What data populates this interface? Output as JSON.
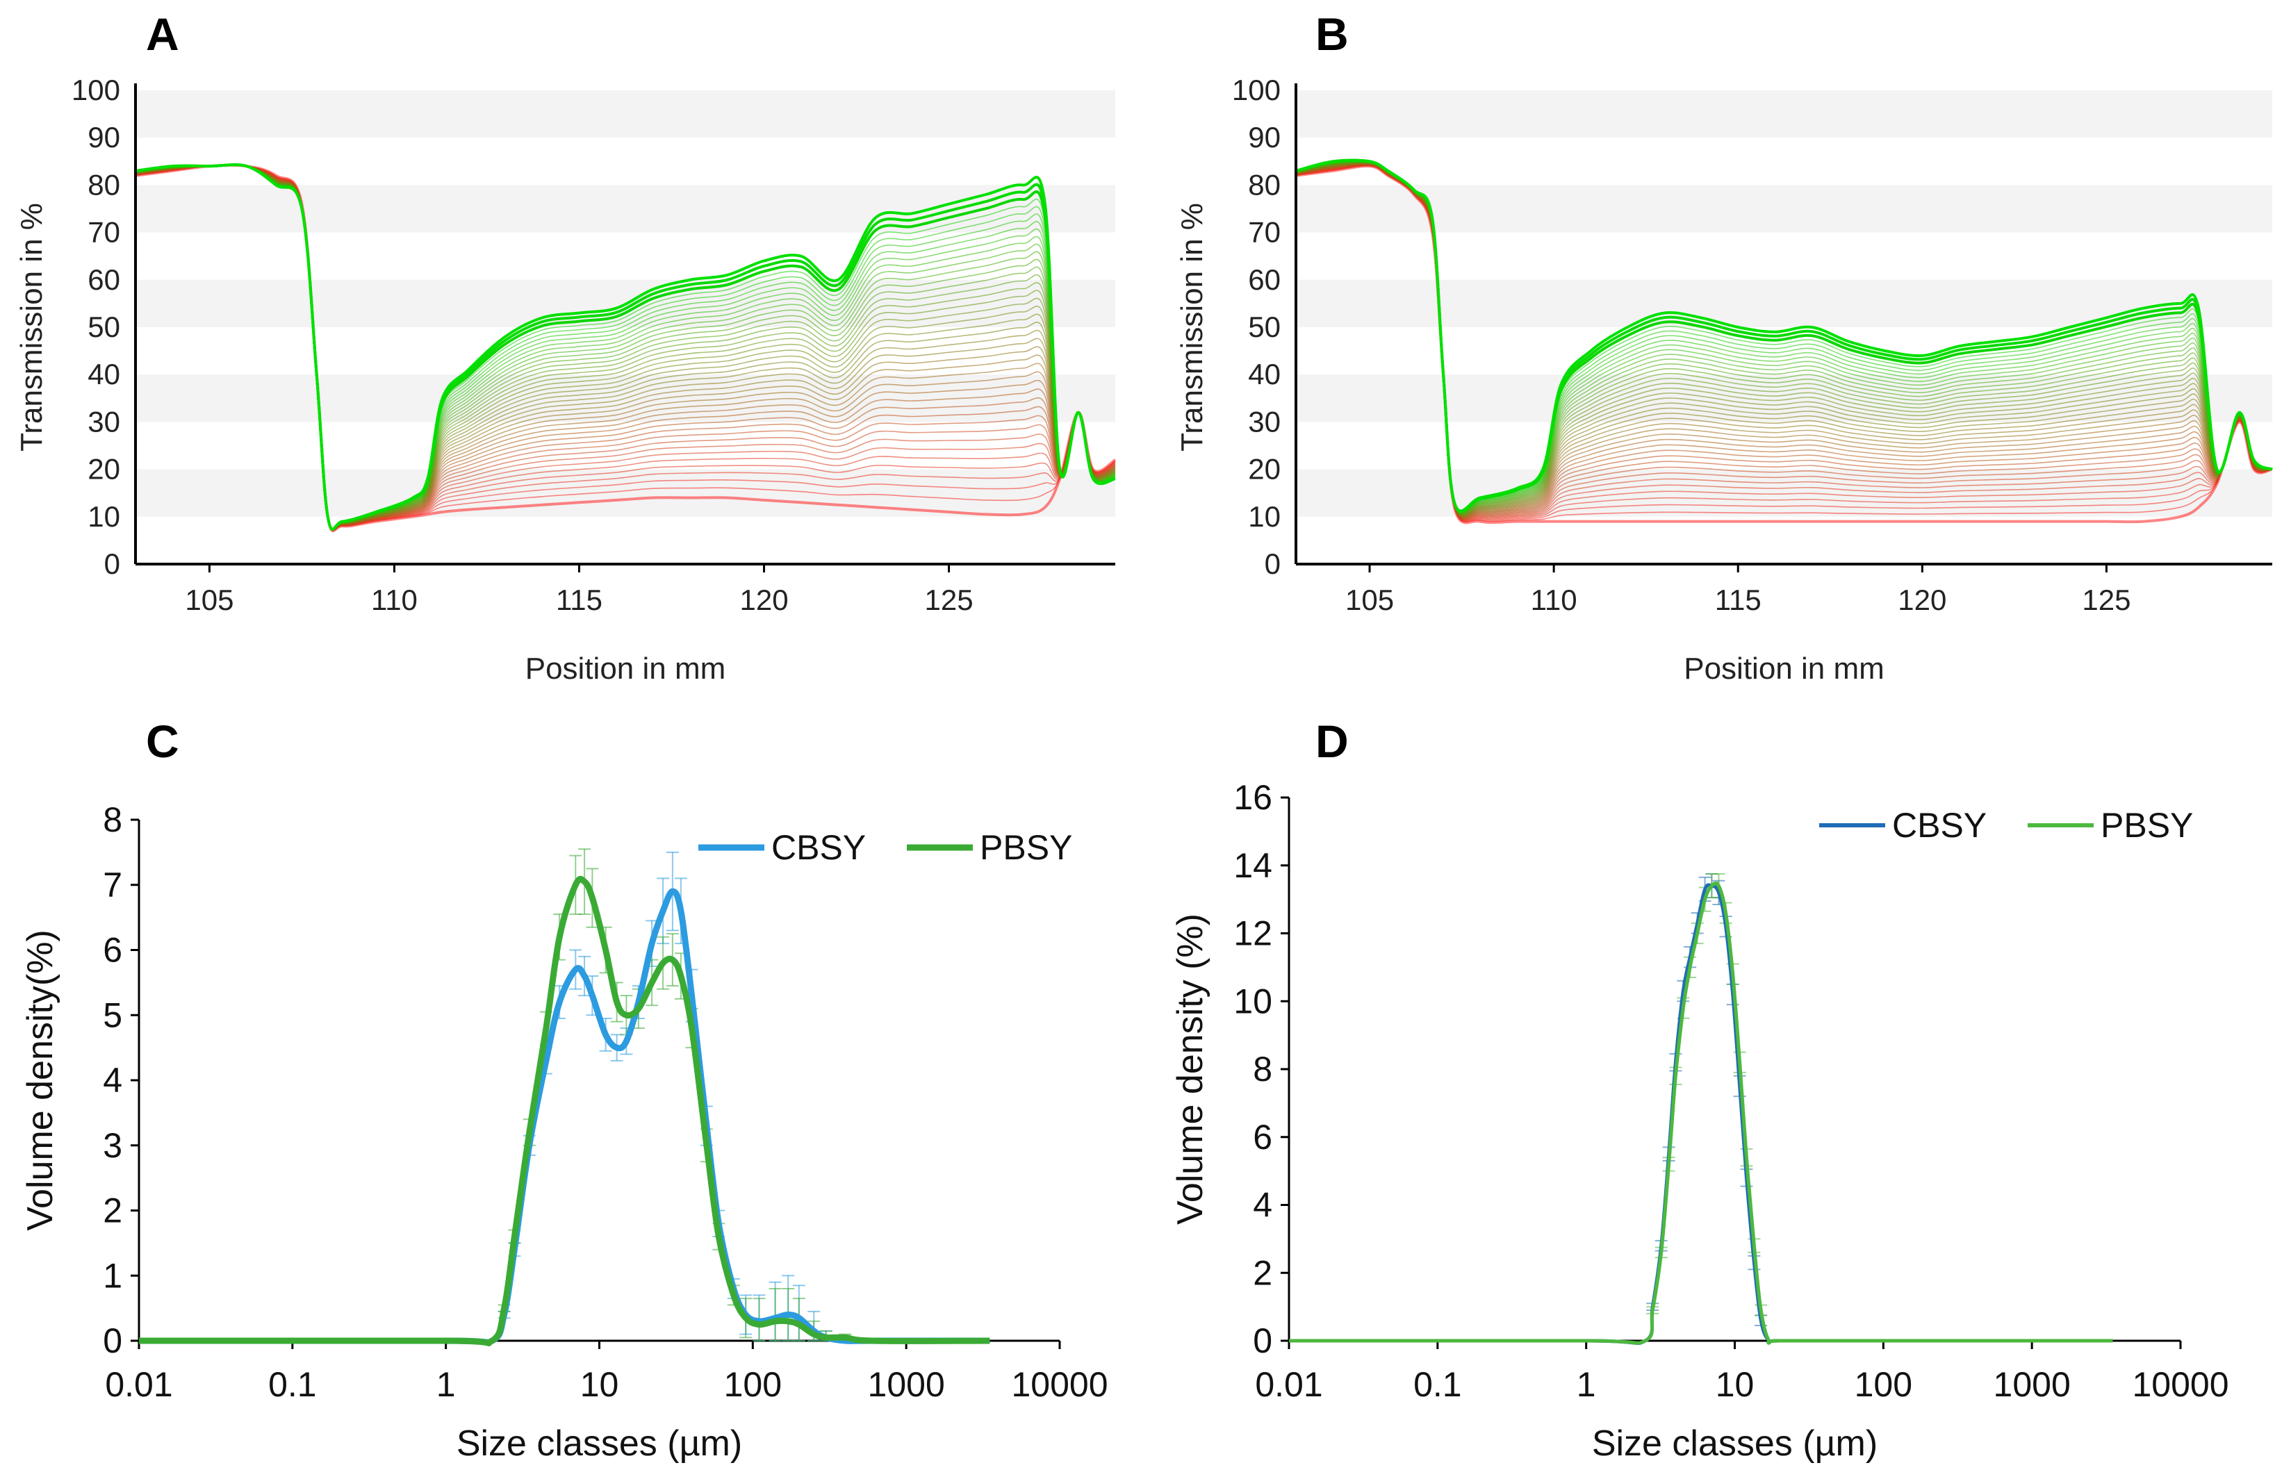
{
  "figure": {
    "panel_labels": [
      "A",
      "B",
      "C",
      "D"
    ]
  },
  "chart_data": [
    {
      "panel": "A",
      "type": "line",
      "title": "",
      "xlabel": "Position in mm",
      "ylabel": "Transmission in %",
      "xlim": [
        103,
        129.5
      ],
      "ylim": [
        0,
        100
      ],
      "xticks": [
        105,
        110,
        115,
        120,
        125
      ],
      "yticks": [
        0,
        10,
        20,
        30,
        40,
        50,
        60,
        70,
        80,
        90,
        100
      ],
      "profile_count": 40,
      "color_start": "#ff2020",
      "color_end": "#00e000",
      "x": [
        103,
        104,
        105,
        106,
        106.8,
        107.5,
        107.9,
        108.2,
        108.6,
        109.5,
        110.5,
        110.9,
        111.3,
        112,
        113,
        114,
        115,
        116,
        117,
        118,
        119,
        120,
        121,
        122,
        123,
        124,
        125,
        126,
        127,
        127.6,
        128,
        128.5,
        128.9,
        129.5
      ],
      "first_profile": [
        82,
        83,
        84,
        84,
        82,
        76,
        40,
        10,
        8,
        9,
        10,
        10.5,
        11,
        11.5,
        12,
        12.5,
        13,
        13.5,
        14,
        14,
        14,
        13.5,
        13,
        12.5,
        12,
        11.5,
        11,
        10.5,
        10.5,
        12,
        18,
        32,
        20,
        22
      ],
      "last_profile": [
        83,
        84,
        84,
        84,
        80,
        75,
        40,
        10,
        9,
        11,
        14,
        18,
        35,
        41,
        48,
        52,
        53,
        54,
        58,
        60,
        61,
        64,
        65,
        60,
        73,
        74,
        76,
        78,
        80,
        76,
        20,
        32,
        18,
        18
      ]
    },
    {
      "panel": "B",
      "type": "line",
      "title": "",
      "xlabel": "Position in mm",
      "ylabel": "Transmission in %",
      "xlim": [
        103,
        129.5
      ],
      "ylim": [
        0,
        100
      ],
      "xticks": [
        105,
        110,
        115,
        120,
        125
      ],
      "yticks": [
        0,
        10,
        20,
        30,
        40,
        50,
        60,
        70,
        80,
        90,
        100
      ],
      "profile_count": 40,
      "color_start": "#ff2020",
      "color_end": "#00e000",
      "x": [
        103,
        104,
        105,
        105.5,
        106.2,
        106.7,
        107,
        107.3,
        108,
        109,
        109.7,
        110.2,
        111,
        112,
        113,
        114,
        115,
        116,
        117,
        118,
        119,
        120,
        121,
        122,
        123,
        124,
        125,
        126,
        127,
        127.5,
        128,
        128.6,
        129,
        129.5
      ],
      "first_profile": [
        82,
        83,
        84,
        82,
        78,
        70,
        40,
        12,
        9,
        9,
        9,
        9,
        9,
        9,
        9,
        9,
        9,
        9,
        9,
        9,
        9,
        9,
        9,
        9,
        9,
        9,
        9,
        9,
        10,
        12,
        17,
        30,
        20,
        20
      ],
      "last_profile": [
        83,
        85,
        85,
        83,
        79,
        73,
        40,
        13,
        14,
        16,
        20,
        38,
        45,
        50,
        53,
        52,
        50,
        49,
        50,
        47,
        45,
        44,
        46,
        47,
        48,
        50,
        52,
        54,
        55,
        54,
        20,
        32,
        22,
        20
      ]
    },
    {
      "panel": "C",
      "type": "line",
      "title": "",
      "xlabel": "Size classes (µm)",
      "ylabel": "Volume density(%)",
      "xscale": "log",
      "xlim": [
        0.01,
        10000
      ],
      "ylim": [
        0,
        8
      ],
      "xticks": [
        0.01,
        0.1,
        1,
        10,
        100,
        1000,
        10000
      ],
      "xtick_labels": [
        "0.01",
        "0.1",
        "1",
        "10",
        "100",
        "1000",
        "10000"
      ],
      "yticks": [
        0,
        1,
        2,
        3,
        4,
        5,
        6,
        7,
        8
      ],
      "legend": "top-right",
      "x": [
        0.01,
        1,
        2,
        2.4,
        2.8,
        3.5,
        4.5,
        5.5,
        7,
        8,
        9,
        11,
        13,
        15,
        18,
        22,
        26,
        30,
        34,
        40,
        50,
        60,
        75,
        90,
        110,
        140,
        170,
        200,
        250,
        300,
        400,
        600,
        3500
      ],
      "series": [
        {
          "name": "CBSY",
          "color": "#2c9be0",
          "values": [
            0,
            0,
            0,
            0.4,
            1.4,
            3,
            4.3,
            5.2,
            5.7,
            5.6,
            5.3,
            4.7,
            4.5,
            4.6,
            5.2,
            6.1,
            6.6,
            6.9,
            6.6,
            5.3,
            3.3,
            1.8,
            0.8,
            0.4,
            0.3,
            0.35,
            0.4,
            0.35,
            0.15,
            0.05,
            0,
            0,
            0
          ],
          "error": [
            0,
            0,
            0,
            0.05,
            0.1,
            0.15,
            0.2,
            0.25,
            0.3,
            0.3,
            0.3,
            0.25,
            0.2,
            0.2,
            0.25,
            0.35,
            0.5,
            0.6,
            0.5,
            0.4,
            0.3,
            0.2,
            0.15,
            0.3,
            0.4,
            0.55,
            0.6,
            0.5,
            0.3,
            0.1,
            0,
            0,
            0
          ]
        },
        {
          "name": "PBSY",
          "color": "#3aaa35",
          "values": [
            0,
            0,
            0,
            0.5,
            1.6,
            3.2,
            4.8,
            6.2,
            7,
            7.05,
            6.8,
            6,
            5.2,
            5,
            5.1,
            5.5,
            5.8,
            5.85,
            5.6,
            4.8,
            3,
            1.6,
            0.7,
            0.35,
            0.25,
            0.3,
            0.3,
            0.25,
            0.1,
            0.05,
            0.05,
            0,
            0
          ],
          "error": [
            0,
            0,
            0,
            0.05,
            0.1,
            0.2,
            0.25,
            0.35,
            0.45,
            0.5,
            0.45,
            0.35,
            0.3,
            0.3,
            0.3,
            0.35,
            0.4,
            0.4,
            0.35,
            0.3,
            0.25,
            0.2,
            0.15,
            0.3,
            0.4,
            0.5,
            0.5,
            0.4,
            0.2,
            0.1,
            0.05,
            0,
            0
          ]
        }
      ]
    },
    {
      "panel": "D",
      "type": "line",
      "title": "",
      "xlabel": "Size classes (µm)",
      "ylabel": "Volume density (%)",
      "xscale": "log",
      "xlim": [
        0.01,
        10000
      ],
      "ylim": [
        0,
        16
      ],
      "xticks": [
        0.01,
        0.1,
        1,
        10,
        100,
        1000,
        10000
      ],
      "xtick_labels": [
        "0.01",
        "0.1",
        "1",
        "10",
        "100",
        "1000",
        "10000"
      ],
      "yticks": [
        0,
        2,
        4,
        6,
        8,
        10,
        12,
        14,
        16
      ],
      "legend": "top-right",
      "x": [
        0.01,
        1,
        2.5,
        2.8,
        3.2,
        3.6,
        4,
        4.5,
        5,
        5.6,
        6.3,
        7,
        7.8,
        8.7,
        9.7,
        10.8,
        12,
        13.5,
        15,
        17,
        20,
        100,
        3500
      ],
      "series": [
        {
          "name": "CBSY",
          "color": "#1f6db5",
          "values": [
            0,
            0,
            0,
            1,
            2.8,
            5.5,
            8.2,
            10.3,
            11.3,
            12.3,
            13.3,
            13.4,
            13.2,
            12.2,
            10.2,
            7.5,
            4.8,
            2.3,
            0.6,
            0,
            0,
            0,
            0
          ],
          "error": [
            0,
            0,
            0,
            0.1,
            0.15,
            0.2,
            0.25,
            0.3,
            0.3,
            0.3,
            0.35,
            0.35,
            0.35,
            0.3,
            0.3,
            0.3,
            0.25,
            0.2,
            0.15,
            0,
            0,
            0,
            0
          ]
        },
        {
          "name": "PBSY",
          "color": "#4db83e",
          "values": [
            0,
            0,
            0,
            0.9,
            2.6,
            5.2,
            7.8,
            9.8,
            11,
            12,
            13,
            13.4,
            13.4,
            12.6,
            10.8,
            8.2,
            5.4,
            2.8,
            0.9,
            0,
            0,
            0,
            0
          ],
          "error": [
            0,
            0,
            0,
            0.1,
            0.15,
            0.2,
            0.25,
            0.3,
            0.3,
            0.3,
            0.35,
            0.35,
            0.35,
            0.3,
            0.3,
            0.3,
            0.25,
            0.2,
            0.15,
            0,
            0,
            0,
            0
          ]
        }
      ]
    }
  ]
}
